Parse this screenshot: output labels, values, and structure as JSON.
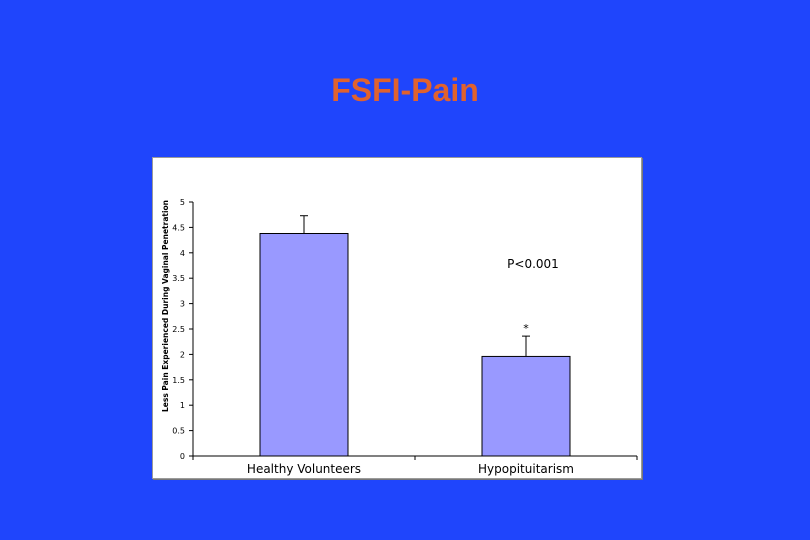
{
  "slide": {
    "title": "FSFI-Pain",
    "title_color": "#e0622e",
    "background_color": "#1f45fc"
  },
  "chart_data": {
    "type": "bar",
    "title": "",
    "xlabel": "",
    "ylabel": "Less Pain Experienced During Vaginal Penetration",
    "categories": [
      "Healthy Volunteers",
      "Hypopituitarism"
    ],
    "series": [
      {
        "values": [
          4.38,
          1.96
        ],
        "error_plus": [
          0.35,
          0.4
        ],
        "color": "#9999ff"
      }
    ],
    "ylim": [
      0,
      5
    ],
    "yticks": [
      "0",
      "0.5",
      "1",
      "1.5",
      "2",
      "2.5",
      "3",
      "3.5",
      "4",
      "4.5",
      "5"
    ],
    "grid": false,
    "legend": "none",
    "annotations": {
      "p_value": "P<0.001",
      "significance_marker": "*"
    }
  }
}
